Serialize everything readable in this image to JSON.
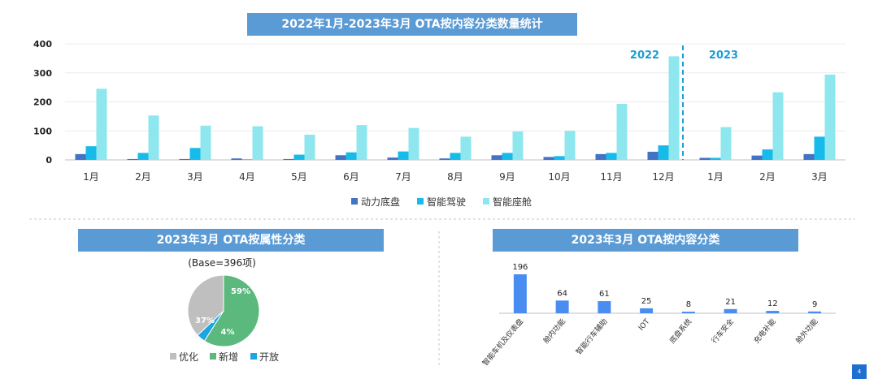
{
  "page_number": "4",
  "chart_data": [
    {
      "type": "bar",
      "title": "2022年1月-2023年3月 OTA按内容分类数量统计",
      "categories": [
        "1月",
        "2月",
        "3月",
        "4月",
        "5月",
        "6月",
        "7月",
        "8月",
        "9月",
        "10月",
        "11月",
        "12月",
        "1月",
        "2月",
        "3月"
      ],
      "series": [
        {
          "name": "动力底盘",
          "color": "#4472c4",
          "values": [
            20,
            3,
            3,
            5,
            3,
            16,
            8,
            5,
            16,
            10,
            20,
            28,
            7,
            15,
            20
          ]
        },
        {
          "name": "智能驾驶",
          "color": "#16bbe9",
          "values": [
            47,
            24,
            41,
            2,
            18,
            26,
            29,
            24,
            24,
            13,
            24,
            50,
            7,
            36,
            80
          ]
        },
        {
          "name": "智能座舱",
          "color": "#8ee7ee",
          "values": [
            245,
            153,
            118,
            116,
            87,
            120,
            110,
            80,
            98,
            100,
            193,
            357,
            113,
            233,
            294
          ]
        }
      ],
      "ylim": [
        0,
        400
      ],
      "yticks": [
        "0",
        "100",
        "200",
        "300",
        "400"
      ],
      "year_labels": [
        "2022",
        "2023"
      ],
      "legend": "bottom"
    },
    {
      "type": "pie",
      "title": "2023年3月 OTA按属性分类",
      "subtitle": "(Base=396项)",
      "slices": [
        {
          "label": "优化",
          "value": 37,
          "text": "37%",
          "color": "#bfbfbf"
        },
        {
          "label": "新增",
          "value": 59,
          "text": "59%",
          "color": "#5cb97e"
        },
        {
          "label": "开放",
          "value": 4,
          "text": "4%",
          "color": "#1ba6e2"
        }
      ],
      "legend": "bottom"
    },
    {
      "type": "bar",
      "title": "2023年3月 OTA按内容分类",
      "categories": [
        "智能车机及仪表盘",
        "舱内功能",
        "智能行车辅助",
        "IOT",
        "底盘系统",
        "行车安全",
        "充电补能",
        "舱外功能"
      ],
      "values": [
        196,
        64,
        61,
        25,
        8,
        21,
        12,
        9
      ],
      "color": "#4a8df0"
    }
  ]
}
